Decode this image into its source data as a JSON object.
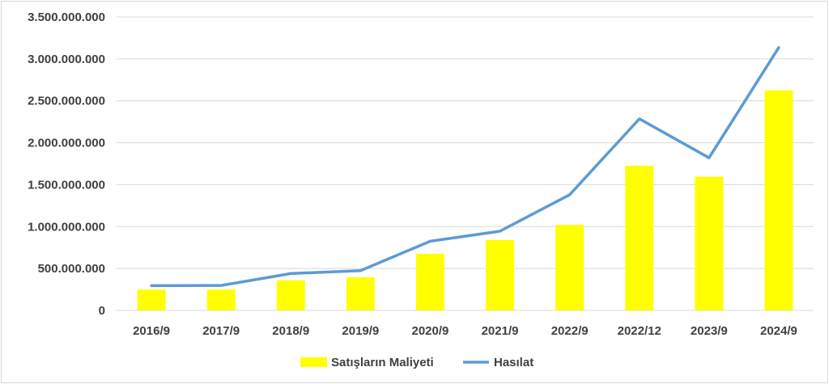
{
  "chart_data": {
    "type": "bar",
    "categories": [
      "2016/9",
      "2017/9",
      "2018/9",
      "2019/9",
      "2020/9",
      "2021/9",
      "2022/9",
      "2022/12",
      "2023/9",
      "2024/9"
    ],
    "series": [
      {
        "name": "Satışların Maliyeti",
        "type": "bar",
        "color": "#ffff00",
        "values": [
          250000000,
          250000000,
          360000000,
          395000000,
          675000000,
          840000000,
          1020000000,
          1725000000,
          1595000000,
          2625000000
        ]
      },
      {
        "name": "Hasılat",
        "type": "line",
        "color": "#5b9bd5",
        "values": [
          295000000,
          298000000,
          440000000,
          475000000,
          825000000,
          945000000,
          1380000000,
          2285000000,
          1820000000,
          3135000000
        ]
      }
    ],
    "ylim": [
      0,
      3500000000
    ],
    "yticks": [
      0,
      500000000,
      1000000000,
      1500000000,
      2000000000,
      2500000000,
      3000000000,
      3500000000
    ],
    "ytick_labels": [
      "0",
      "500.000.000",
      "1.000.000.000",
      "1.500.000.000",
      "2.000.000.000",
      "2.500.000.000",
      "3.000.000.000",
      "3.500.000.000"
    ],
    "grid": true,
    "legend_position": "bottom"
  }
}
